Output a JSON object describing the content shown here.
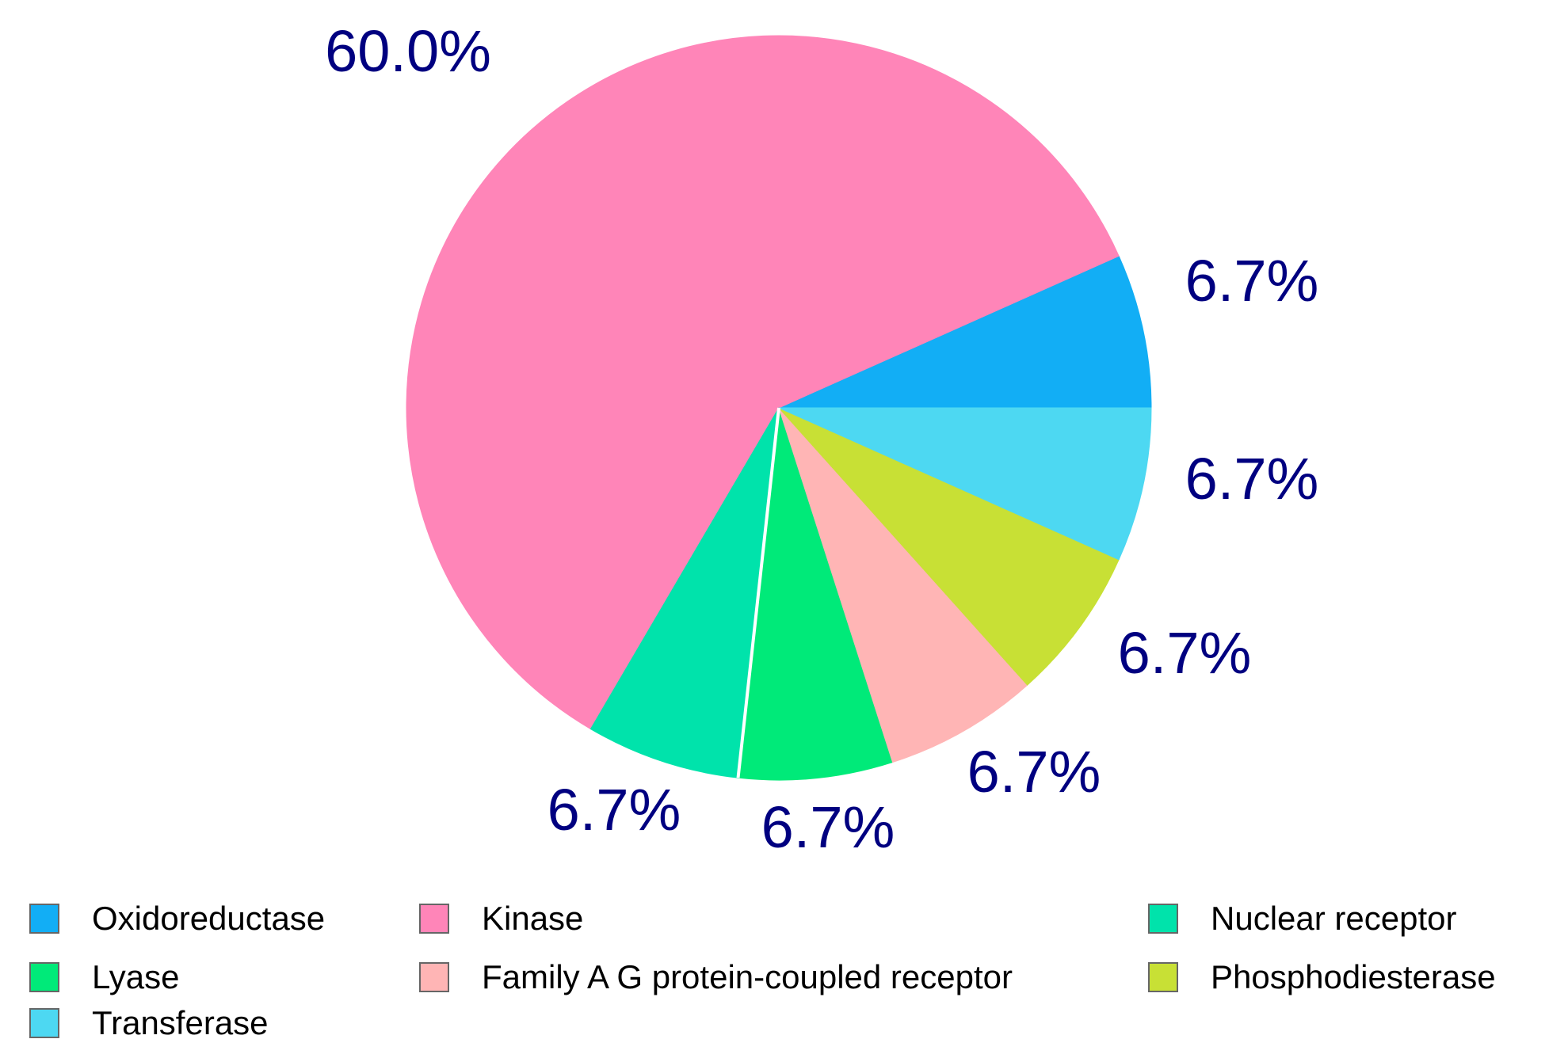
{
  "chart_data": {
    "type": "pie",
    "slices": [
      {
        "name": "Oxidoreductase",
        "value": 6.7,
        "label": "6.7%",
        "color": "#12aef5"
      },
      {
        "name": "Kinase",
        "value": 60.0,
        "label": "60.0%",
        "color": "#ff85b8"
      },
      {
        "name": "Nuclear receptor",
        "value": 6.7,
        "label": "6.7%",
        "color": "#00e3ab"
      },
      {
        "name": "Lyase",
        "value": 6.7,
        "label": "6.7%",
        "color": "#00ea79"
      },
      {
        "name": "Family A G protein-coupled receptor",
        "value": 6.7,
        "label": "6.7%",
        "color": "#ffb5b5"
      },
      {
        "name": "Phosphodiesterase",
        "value": 6.7,
        "label": "6.7%",
        "color": "#c8e035"
      },
      {
        "name": "Transferase",
        "value": 6.7,
        "label": "6.7%",
        "color": "#4dd8f2"
      }
    ],
    "legend_position": "bottom",
    "label_color": "#000080"
  }
}
